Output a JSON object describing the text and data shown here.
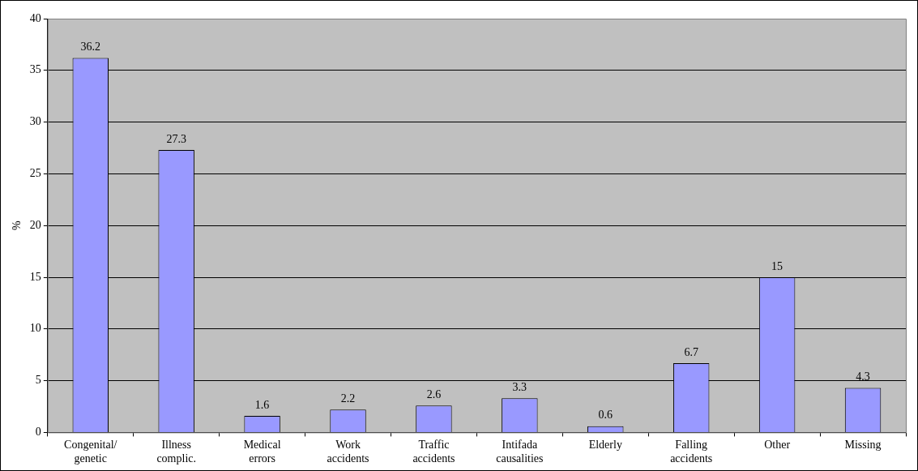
{
  "chart_data": {
    "type": "bar",
    "ylabel": "%",
    "categories": [
      "Congenital/ genetic",
      "Illness complic.",
      "Medical errors",
      "Work accidents",
      "Traffic accidents",
      "Intifada causalities",
      "Elderly",
      "Falling accidents",
      "Other",
      "Missing"
    ],
    "values": [
      36.2,
      27.3,
      1.6,
      2.2,
      2.6,
      3.3,
      0.6,
      6.7,
      15,
      4.3
    ],
    "color": "#9999ff",
    "ylim": [
      0,
      40
    ],
    "yticks": [
      0,
      5,
      10,
      15,
      20,
      25,
      30,
      35,
      40
    ],
    "grid": "y",
    "data_labels": true,
    "legend": false
  }
}
